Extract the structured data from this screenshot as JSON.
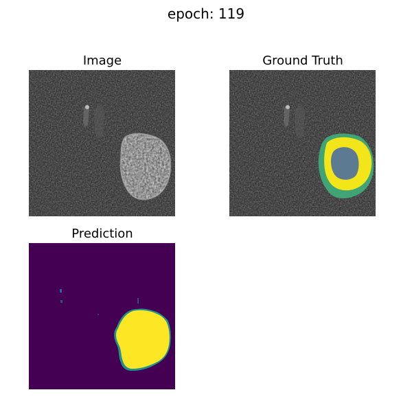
{
  "figure": {
    "suptitle": "epoch: 119"
  },
  "panels": {
    "image": {
      "title": "Image",
      "background_color": "#262626"
    },
    "ground_truth": {
      "title": "Ground Truth",
      "background_color": "#262626",
      "label_colors": {
        "edema": "#3fae7a",
        "enhancing_tumor": "#f2e51a",
        "necrotic_core": "#5d7a93"
      }
    },
    "prediction": {
      "title": "Prediction",
      "background_color": "#440154",
      "foreground_color": "#fde725",
      "edge_color": "#21918c"
    }
  }
}
